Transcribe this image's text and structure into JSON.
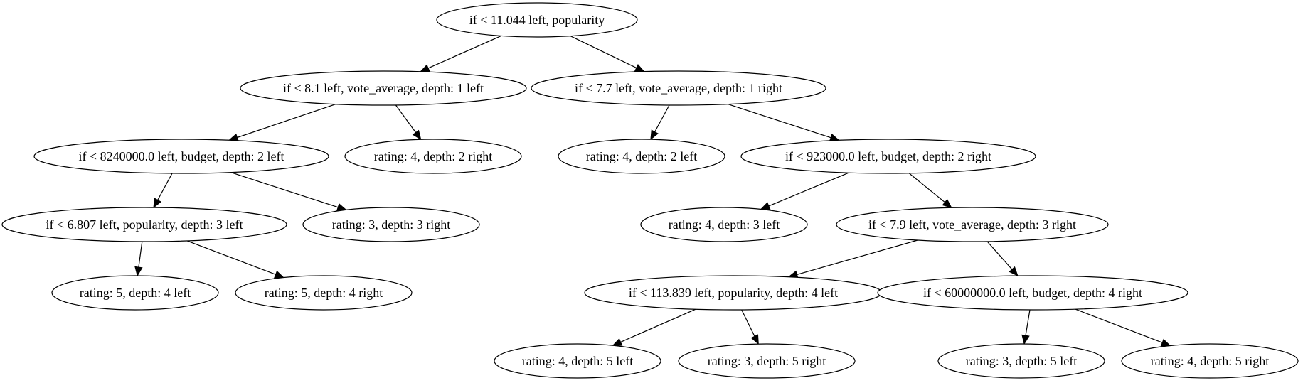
{
  "nodes": [
    {
      "id": "n0",
      "label": "if < 11.044 left, popularity"
    },
    {
      "id": "n1",
      "label": "if < 8.1 left, vote_average, depth: 1 left"
    },
    {
      "id": "n2",
      "label": "if < 7.7 left, vote_average, depth: 1 right"
    },
    {
      "id": "n3",
      "label": "if < 8240000.0 left, budget, depth: 2 left"
    },
    {
      "id": "n4",
      "label": "rating: 4, depth: 2 right"
    },
    {
      "id": "n5",
      "label": "rating: 4, depth: 2 left"
    },
    {
      "id": "n6",
      "label": "if < 923000.0 left, budget, depth: 2 right"
    },
    {
      "id": "n7",
      "label": "if < 6.807 left, popularity, depth: 3 left"
    },
    {
      "id": "n8",
      "label": "rating: 3, depth: 3 right"
    },
    {
      "id": "n9",
      "label": "rating: 4, depth: 3 left"
    },
    {
      "id": "n10",
      "label": "if < 7.9 left, vote_average, depth: 3 right"
    },
    {
      "id": "n11",
      "label": "rating: 5, depth: 4 left"
    },
    {
      "id": "n12",
      "label": "rating: 5, depth: 4 right"
    },
    {
      "id": "n13",
      "label": "if < 113.839 left, popularity, depth: 4 left"
    },
    {
      "id": "n14",
      "label": "if < 60000000.0 left, budget, depth: 4 right"
    },
    {
      "id": "n15",
      "label": "rating: 4, depth: 5 left"
    },
    {
      "id": "n16",
      "label": "rating: 3, depth: 5 right"
    },
    {
      "id": "n17",
      "label": "rating: 3, depth: 5 left"
    },
    {
      "id": "n18",
      "label": "rating: 4, depth: 5 right"
    }
  ],
  "edges": [
    {
      "from": "n0",
      "to": "n1"
    },
    {
      "from": "n0",
      "to": "n2"
    },
    {
      "from": "n1",
      "to": "n3"
    },
    {
      "from": "n1",
      "to": "n4"
    },
    {
      "from": "n2",
      "to": "n5"
    },
    {
      "from": "n2",
      "to": "n6"
    },
    {
      "from": "n3",
      "to": "n7"
    },
    {
      "from": "n3",
      "to": "n8"
    },
    {
      "from": "n6",
      "to": "n9"
    },
    {
      "from": "n6",
      "to": "n10"
    },
    {
      "from": "n7",
      "to": "n11"
    },
    {
      "from": "n7",
      "to": "n12"
    },
    {
      "from": "n10",
      "to": "n13"
    },
    {
      "from": "n10",
      "to": "n14"
    },
    {
      "from": "n13",
      "to": "n15"
    },
    {
      "from": "n13",
      "to": "n16"
    },
    {
      "from": "n14",
      "to": "n17"
    },
    {
      "from": "n14",
      "to": "n18"
    }
  ]
}
